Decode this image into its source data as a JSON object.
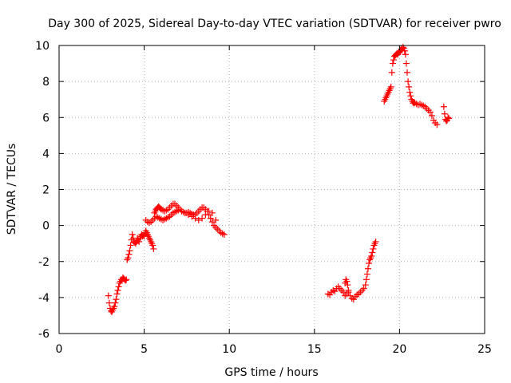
{
  "chart_data": {
    "type": "scatter",
    "title": "Day 300 of 2025, Sidereal Day-to-day VTEC variation (SDTVAR) for receiver pwro",
    "xlabel": "GPS time / hours",
    "ylabel": "SDTVAR / TECUs",
    "xlim": [
      0,
      25
    ],
    "ylim": [
      -6,
      10
    ],
    "xticks": [
      0,
      5,
      10,
      15,
      20,
      25
    ],
    "yticks": [
      -6,
      -4,
      -2,
      0,
      2,
      4,
      6,
      8,
      10
    ],
    "grid": true,
    "marker": "+",
    "color": "#ff0000",
    "series": [
      {
        "name": "SDTVAR",
        "x": [
          2.9,
          2.95,
          3.0,
          3.05,
          3.1,
          3.15,
          3.2,
          3.25,
          3.3,
          3.35,
          3.4,
          3.45,
          3.5,
          3.55,
          3.6,
          3.65,
          3.7,
          3.75,
          3.8,
          3.85,
          3.9,
          3.95,
          4.0,
          4.05,
          4.1,
          4.15,
          4.2,
          4.25,
          4.3,
          4.35,
          4.4,
          4.45,
          4.5,
          4.55,
          4.6,
          4.65,
          4.7,
          4.75,
          4.8,
          4.85,
          4.9,
          4.95,
          5.0,
          5.05,
          5.1,
          5.15,
          5.2,
          5.25,
          5.3,
          5.35,
          5.4,
          5.45,
          5.5,
          5.55,
          5.6,
          5.65,
          5.7,
          5.75,
          5.8,
          5.85,
          5.9,
          5.95,
          6.0,
          6.1,
          6.2,
          6.3,
          6.4,
          6.5,
          6.6,
          6.7,
          6.8,
          6.9,
          7.0,
          7.1,
          7.2,
          7.3,
          7.4,
          7.5,
          7.6,
          7.7,
          7.8,
          7.9,
          8.0,
          8.1,
          8.2,
          8.3,
          8.4,
          8.5,
          8.6,
          8.7,
          8.8,
          8.9,
          9.0,
          9.1,
          9.2,
          9.3,
          9.4,
          9.5,
          9.6,
          9.7,
          5.1,
          5.2,
          5.3,
          5.4,
          5.5,
          5.6,
          5.7,
          5.8,
          5.9,
          6.0,
          6.1,
          6.2,
          6.3,
          6.4,
          6.5,
          6.6,
          6.7,
          6.8,
          6.9,
          7.0,
          7.2,
          7.4,
          7.6,
          7.8,
          8.0,
          8.2,
          8.4,
          8.6,
          8.8,
          9.0,
          9.2,
          15.8,
          15.9,
          16.0,
          16.1,
          16.2,
          16.3,
          16.4,
          16.5,
          16.6,
          16.7,
          16.8,
          16.9,
          17.0,
          17.1,
          17.2,
          17.3,
          17.4,
          17.5,
          17.6,
          17.7,
          17.8,
          17.9,
          18.0,
          18.05,
          18.1,
          18.15,
          18.2,
          18.25,
          18.3,
          18.35,
          18.4,
          18.45,
          18.5,
          18.55,
          18.6,
          16.8,
          16.85,
          16.9,
          16.95,
          17.0,
          19.1,
          19.15,
          19.2,
          19.25,
          19.3,
          19.35,
          19.4,
          19.45,
          19.5,
          19.55,
          19.6,
          19.65,
          19.7,
          19.75,
          19.8,
          19.85,
          19.9,
          19.95,
          20.0,
          20.05,
          20.1,
          20.15,
          20.2,
          20.25,
          20.3,
          20.35,
          20.4,
          20.45,
          20.5,
          20.55,
          20.6,
          20.65,
          20.7,
          20.75,
          20.8,
          20.85,
          20.9,
          21.0,
          21.1,
          21.2,
          21.3,
          21.4,
          21.5,
          21.6,
          21.7,
          21.8,
          21.9,
          22.0,
          22.1,
          22.2,
          22.6,
          22.65,
          22.7,
          22.75,
          22.8,
          22.85,
          22.9
        ],
        "y": [
          -3.9,
          -4.3,
          -4.6,
          -4.75,
          -4.8,
          -4.7,
          -4.6,
          -4.5,
          -4.3,
          -4.1,
          -3.8,
          -3.6,
          -3.4,
          -3.2,
          -3.1,
          -3.0,
          -3.0,
          -2.9,
          -2.95,
          -3.0,
          -3.05,
          -3.0,
          -1.9,
          -1.8,
          -1.6,
          -1.4,
          -1.1,
          -0.8,
          -0.5,
          -0.7,
          -0.9,
          -0.95,
          -1.0,
          -0.9,
          -0.7,
          -0.8,
          -0.9,
          -0.7,
          -0.6,
          -0.5,
          -0.6,
          -0.55,
          -0.6,
          -0.4,
          -0.3,
          -0.4,
          -0.5,
          -0.6,
          -0.7,
          -0.8,
          -0.9,
          -1.0,
          -1.1,
          -1.3,
          0.7,
          0.8,
          0.9,
          0.95,
          1.0,
          1.05,
          1.0,
          0.95,
          0.9,
          0.85,
          0.8,
          0.85,
          0.9,
          1.0,
          1.1,
          1.2,
          1.2,
          1.1,
          1.0,
          0.9,
          0.8,
          0.75,
          0.7,
          0.7,
          0.75,
          0.7,
          0.65,
          0.6,
          0.6,
          0.7,
          0.8,
          0.9,
          1.0,
          1.0,
          0.9,
          0.8,
          0.6,
          0.4,
          0.2,
          0.0,
          -0.1,
          -0.2,
          -0.3,
          -0.4,
          -0.45,
          -0.5,
          0.3,
          0.2,
          0.15,
          0.2,
          0.3,
          0.4,
          0.5,
          0.45,
          0.4,
          0.35,
          0.3,
          0.35,
          0.4,
          0.45,
          0.5,
          0.6,
          0.7,
          0.75,
          0.8,
          0.85,
          0.8,
          0.7,
          0.6,
          0.5,
          0.4,
          0.3,
          0.4,
          0.6,
          0.8,
          0.7,
          0.3,
          -3.8,
          -3.85,
          -3.7,
          -3.6,
          -3.65,
          -3.5,
          -3.4,
          -3.5,
          -3.6,
          -3.7,
          -3.9,
          -3.8,
          -3.7,
          -3.9,
          -4.05,
          -4.1,
          -3.95,
          -3.85,
          -3.8,
          -3.7,
          -3.6,
          -3.5,
          -3.3,
          -3.0,
          -2.7,
          -2.4,
          -2.1,
          -1.9,
          -1.8,
          -1.7,
          -1.5,
          -1.3,
          -1.1,
          -1.0,
          -0.9,
          -3.2,
          -3.0,
          -3.1,
          -3.3,
          -3.6,
          6.9,
          7.0,
          7.1,
          7.2,
          7.3,
          7.4,
          7.5,
          7.6,
          7.7,
          8.5,
          9.0,
          9.2,
          9.4,
          9.45,
          9.5,
          9.55,
          9.5,
          9.6,
          9.65,
          9.7,
          9.8,
          9.75,
          9.9,
          9.85,
          9.7,
          9.5,
          9.0,
          8.5,
          8.0,
          7.7,
          7.4,
          7.2,
          7.0,
          6.9,
          6.8,
          6.85,
          6.8,
          6.75,
          6.7,
          6.75,
          6.7,
          6.65,
          6.6,
          6.5,
          6.4,
          6.3,
          6.1,
          5.85,
          5.7,
          5.6,
          6.6,
          6.2,
          5.9,
          5.8,
          5.85,
          6.0,
          5.95
        ]
      }
    ]
  }
}
